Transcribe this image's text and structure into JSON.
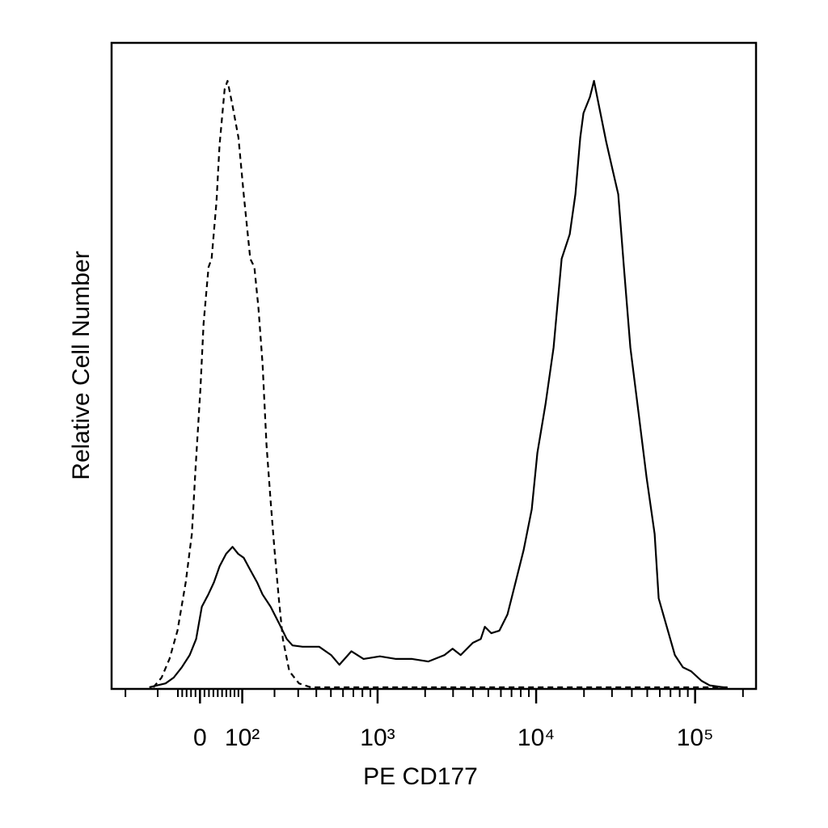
{
  "chart_data": {
    "type": "line",
    "xlabel": "PE CD177",
    "ylabel": "Relative Cell Number",
    "xscale": "biexponential",
    "xlim": [
      -255,
      241700
    ],
    "ylim": [
      0,
      100
    ],
    "xticks": [
      0,
      {
        "value": 100,
        "label": "10²"
      },
      {
        "value": 1000,
        "label": "10³"
      },
      {
        "value": 10000,
        "label": "10⁴"
      },
      {
        "value": 100000,
        "label": "10⁵"
      }
    ],
    "xminorticks": [
      -200,
      -100,
      -50,
      -40,
      -30,
      -20,
      -10,
      10,
      20,
      30,
      40,
      50,
      60,
      70,
      80,
      90,
      200,
      300,
      400,
      500,
      600,
      700,
      800,
      900,
      2000,
      3000,
      4000,
      5000,
      6000,
      7000,
      8000,
      9000,
      20000,
      30000,
      40000,
      50000,
      60000,
      70000,
      80000,
      90000,
      200000
    ],
    "series": [
      {
        "color": "#000000",
        "dashed": true,
        "x": [
          -112,
          -90,
          -70,
          -51,
          -32,
          -18,
          -10,
          1,
          8,
          19,
          26,
          37,
          44,
          56,
          63,
          75,
          90,
          104,
          122,
          134,
          146,
          159,
          172,
          186,
          200,
          216,
          232,
          259,
          304,
          367,
          160000
        ],
        "values": [
          0,
          1.5,
          4.4,
          8.8,
          16.3,
          23.8,
          33.9,
          46.4,
          56.5,
          65.2,
          66.5,
          75.3,
          84.1,
          92.8,
          94.1,
          90.3,
          85.3,
          76.5,
          66.5,
          65.2,
          58.9,
          50.2,
          37.6,
          28.9,
          21.3,
          13.8,
          7.5,
          2.5,
          0.6,
          0,
          0
        ]
      },
      {
        "color": "#000000",
        "dashed": false,
        "x": [
          -123,
          -101,
          -80,
          -60,
          -41,
          -23,
          -8.5,
          4.1,
          18.6,
          31.3,
          44.3,
          59.5,
          75.2,
          89.5,
          104,
          122,
          142,
          159,
          186,
          216,
          248,
          273,
          322,
          418,
          502,
          568,
          680,
          814,
          1034,
          1308,
          1654,
          2093,
          2650,
          2978,
          3348,
          3991,
          4486,
          4757,
          5223,
          5874,
          6602,
          7422,
          8344,
          9382,
          10184,
          11448,
          12870,
          14469,
          16266,
          17660,
          18947,
          19854,
          21805,
          23121,
          25095,
          27560,
          30268,
          32855,
          35666,
          39168,
          44037,
          49505,
          55649,
          59013,
          66340,
          74588,
          83850,
          94264,
          109763,
          123402,
          150528
        ],
        "values": [
          0,
          0.3,
          0.6,
          1.5,
          3.1,
          5.0,
          7.5,
          12.5,
          14.4,
          16.3,
          18.8,
          20.7,
          21.8,
          20.7,
          20.1,
          18.2,
          16.3,
          14.4,
          12.5,
          10.0,
          7.5,
          6.5,
          6.3,
          6.3,
          5.0,
          3.5,
          5.6,
          4.4,
          4.8,
          4.4,
          4.4,
          4.0,
          5.0,
          6.0,
          5.0,
          6.9,
          7.5,
          9.4,
          8.4,
          8.8,
          11.3,
          16.3,
          21.3,
          27.6,
          36.4,
          43.9,
          52.7,
          66.5,
          70.3,
          76.5,
          85.3,
          89.1,
          91.6,
          94.1,
          89.7,
          84.7,
          80.3,
          76.5,
          65.2,
          52.7,
          42.7,
          32.6,
          23.8,
          13.8,
          9.4,
          5.0,
          3.1,
          2.5,
          1.0,
          0.3,
          0
        ]
      }
    ]
  }
}
